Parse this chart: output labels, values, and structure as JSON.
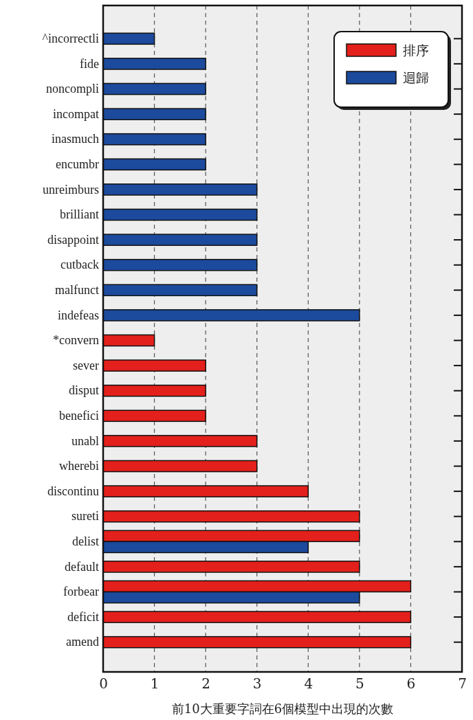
{
  "chart_data": {
    "type": "bar",
    "orientation": "horizontal",
    "xlabel": "前10大重要字詞在6個模型中出現的次數",
    "categories": [
      "^incorrectli",
      "fide",
      "noncompli",
      "incompat",
      "inasmuch",
      "encumbr",
      "unreimburs",
      "brilliant",
      "disappoint",
      "cutback",
      "malfunct",
      "indefeas",
      "*convern",
      "sever",
      "disput",
      "benefici",
      "unabl",
      "wherebi",
      "discontinu",
      "sureti",
      "delist",
      "default",
      "forbear",
      "deficit",
      "amend"
    ],
    "series": [
      {
        "name": "排序",
        "color": "#e3201b",
        "values": [
          null,
          null,
          null,
          null,
          null,
          null,
          null,
          null,
          null,
          null,
          null,
          null,
          1,
          2,
          2,
          2,
          3,
          3,
          4,
          5,
          5,
          5,
          6,
          6,
          6
        ]
      },
      {
        "name": "迴歸",
        "color": "#1c4a9c",
        "values": [
          1,
          2,
          2,
          2,
          2,
          2,
          3,
          3,
          3,
          3,
          3,
          5,
          null,
          null,
          null,
          null,
          null,
          null,
          null,
          null,
          4,
          null,
          5,
          null,
          null
        ]
      }
    ],
    "xlim": [
      0,
      7
    ],
    "xticks": [
      0,
      1,
      2,
      3,
      4,
      5,
      6,
      7
    ],
    "grid": "x",
    "legend": "top right"
  }
}
